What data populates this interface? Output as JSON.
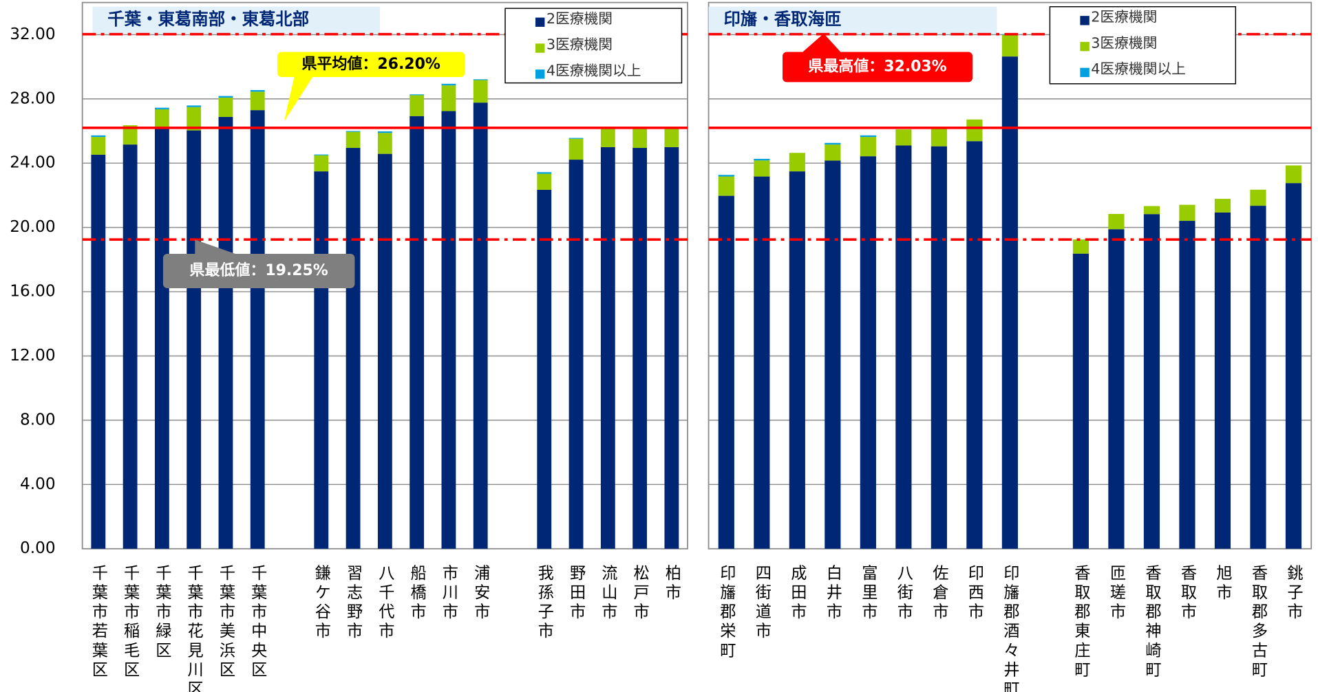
{
  "chart_data": [
    {
      "type": "bar",
      "stacked": true,
      "title": "千葉・東葛南部・東葛北部",
      "categories": [
        "千葉市若葉区",
        "千葉市稲毛区",
        "千葉市緑区",
        "千葉市花見川区",
        "千葉市美浜区",
        "千葉市中央区",
        null,
        "鎌ケ谷市",
        "習志野市",
        "八千代市",
        "船橋市",
        "市川市",
        "浦安市",
        null,
        "我孫子市",
        "野田市",
        "流山市",
        "松戸市",
        "柏市"
      ],
      "series": [
        {
          "name": "2医療機関",
          "color": "#002776",
          "values": [
            24.53,
            25.16,
            26.15,
            26.04,
            26.88,
            27.3,
            null,
            23.49,
            24.95,
            24.58,
            26.93,
            27.24,
            27.77,
            null,
            22.34,
            24.22,
            25.0,
            24.95,
            25.0
          ]
        },
        {
          "name": "3医療機関",
          "color": "#99cc00",
          "values": [
            1.1,
            1.2,
            1.2,
            1.45,
            1.2,
            1.15,
            null,
            1.0,
            1.0,
            1.3,
            1.3,
            1.6,
            1.4,
            null,
            1.0,
            1.3,
            1.2,
            1.25,
            1.2
          ]
        },
        {
          "name": "4医療機関以上",
          "color": "#00a0e0",
          "values": [
            0.1,
            0,
            0.1,
            0.1,
            0.1,
            0.1,
            null,
            0.05,
            0.05,
            0.1,
            0.05,
            0.1,
            0.05,
            null,
            0.1,
            0.05,
            0,
            0,
            0
          ]
        }
      ],
      "ylim": [
        0,
        34
      ],
      "yticks": [
        {
          "value": 0,
          "label": "0.00"
        },
        {
          "value": 4,
          "label": "4.00"
        },
        {
          "value": 8,
          "label": "8.00"
        },
        {
          "value": 12,
          "label": "12.00"
        },
        {
          "value": 16,
          "label": "16.00"
        },
        {
          "value": 20,
          "label": "20.00"
        },
        {
          "value": 24,
          "label": "24.00"
        },
        {
          "value": 28,
          "label": "28.00"
        },
        {
          "value": 32,
          "label": "32.00"
        }
      ],
      "grid": true,
      "reference_lines": [
        {
          "label": "県平均値：26.20%",
          "value": 26.2,
          "color": "#ff0000",
          "style": "solid"
        },
        {
          "label": "県最高値：32.03%",
          "value": 32.03,
          "color": "#ff0000",
          "style": "dash-dot"
        },
        {
          "label": "県最低値：19.25%",
          "value": 19.25,
          "color": "#ff0000",
          "style": "dash-dot"
        }
      ]
    },
    {
      "type": "bar",
      "stacked": true,
      "title": "印旛・香取海匝",
      "categories": [
        "印旛郡栄町",
        "四街道市",
        "成田市",
        "白井市",
        "富里市",
        "八街市",
        "佐倉市",
        "印西市",
        "印旛郡酒々井町",
        null,
        "香取郡東庄町",
        "匝瑳市",
        "香取郡神崎町",
        "香取市",
        "旭市",
        "香取郡多古町",
        "銚子市"
      ],
      "series": [
        {
          "name": "2医療機関",
          "color": "#002776",
          "values": [
            21.97,
            23.17,
            23.49,
            24.16,
            24.43,
            25.1,
            25.05,
            25.37,
            30.64,
            null,
            18.37,
            19.89,
            20.83,
            20.41,
            20.93,
            21.35,
            22.76
          ]
        },
        {
          "name": "3医療機関",
          "color": "#99cc00",
          "values": [
            1.2,
            1.0,
            1.15,
            1.0,
            1.2,
            1.0,
            1.15,
            1.35,
            1.35,
            null,
            0.88,
            0.95,
            0.5,
            1.0,
            0.85,
            1.0,
            1.1
          ]
        },
        {
          "name": "4医療機関以上",
          "color": "#00a0e0",
          "values": [
            0.1,
            0.1,
            0,
            0.1,
            0.1,
            0,
            0,
            0,
            0.04,
            null,
            0,
            0,
            0,
            0,
            0,
            0,
            0
          ]
        }
      ],
      "ylim": [
        0,
        34
      ]
    }
  ]
}
